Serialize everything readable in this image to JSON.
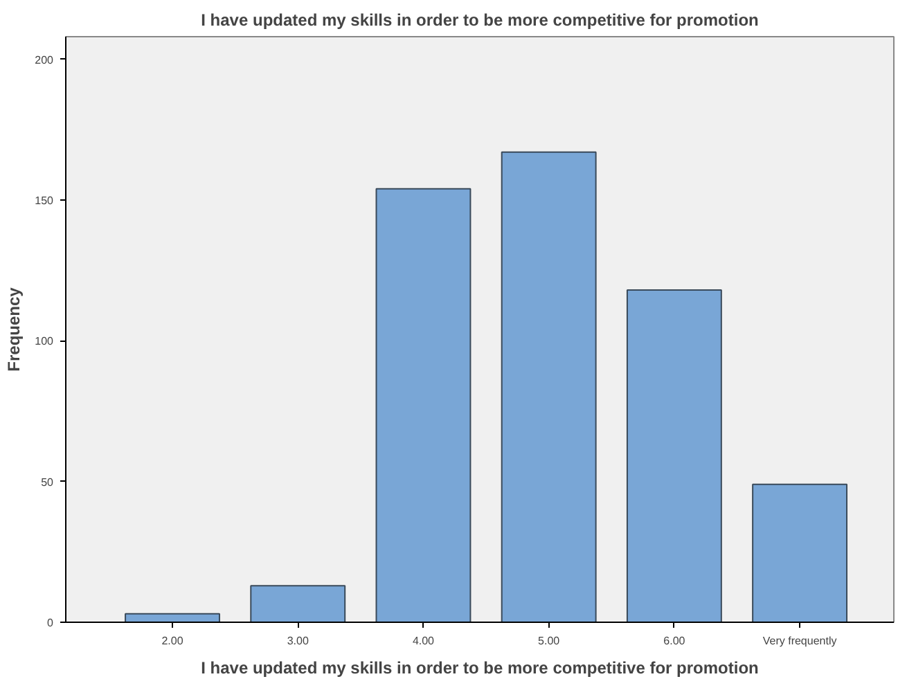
{
  "chart_data": {
    "type": "bar",
    "title": "I have updated my skills in order to be more competitive for promotion",
    "xlabel": "I have updated my skills in order to be more competitive for promotion",
    "ylabel": "Frequency",
    "categories": [
      "2.00",
      "3.00",
      "4.00",
      "5.00",
      "6.00",
      "Very frequently"
    ],
    "values": [
      3,
      13,
      154,
      167,
      118,
      49
    ],
    "color": "#79a6d6",
    "ylim": [
      0,
      208
    ],
    "yticks": [
      0,
      50,
      100,
      150,
      200
    ],
    "grid": false
  }
}
